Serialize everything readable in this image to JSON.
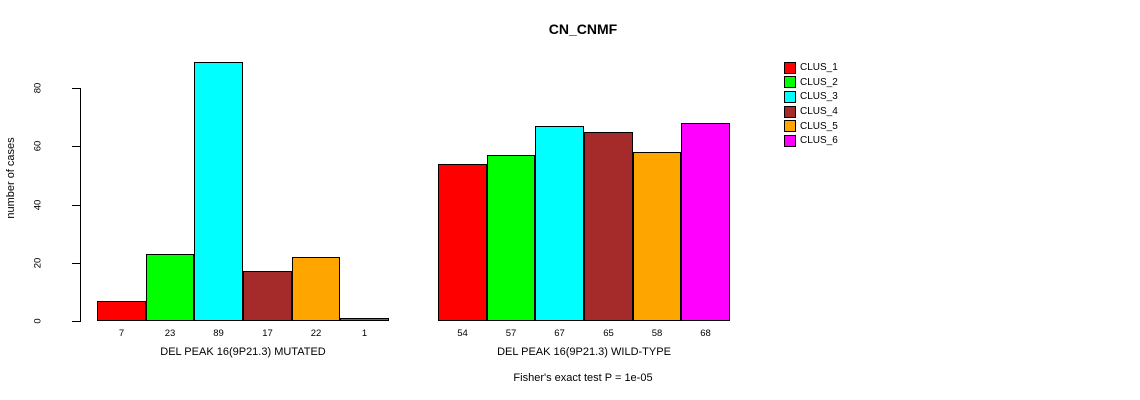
{
  "chart_data": {
    "type": "bar",
    "title": "CN_CNMF",
    "ylabel": "number of cases",
    "xlabel": "",
    "yticks": [
      0,
      20,
      40,
      60,
      80
    ],
    "ylim": [
      0,
      89
    ],
    "grid": false,
    "legend_position": "right-outside",
    "legend": [
      {
        "name": "CLUS_1",
        "color": "#FF0000"
      },
      {
        "name": "CLUS_2",
        "color": "#00FF00"
      },
      {
        "name": "CLUS_3",
        "color": "#00FFFF"
      },
      {
        "name": "CLUS_4",
        "color": "#A52A2A"
      },
      {
        "name": "CLUS_5",
        "color": "#FFA500"
      },
      {
        "name": "CLUS_6",
        "color": "#FF00FF"
      }
    ],
    "groups": [
      {
        "label": "DEL PEAK 16(9P21.3) MUTATED",
        "values": [
          7,
          23,
          89,
          17,
          22,
          1
        ]
      },
      {
        "label": "DEL PEAK 16(9P21.3) WILD-TYPE",
        "values": [
          54,
          57,
          67,
          65,
          58,
          68
        ]
      }
    ],
    "caption": "Fisher's exact test P = 1e-05"
  }
}
